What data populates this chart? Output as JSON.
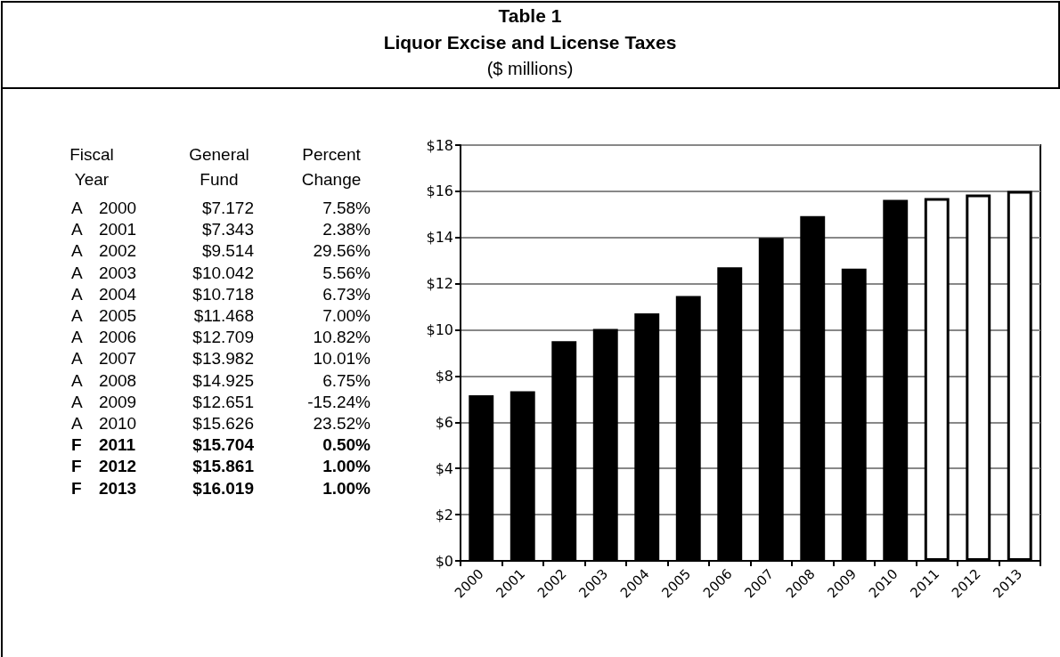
{
  "chart_data": [
    {
      "type": "other",
      "annotations": [
        "Fiscal Year",
        "General Fund",
        "Percent Change",
        "A 2000",
        "$7.172",
        "7.58%",
        "A 2001",
        "$7.343",
        "2.38%",
        "A 2002",
        "$9.514",
        "29.56%",
        "A 2003",
        "$10.042",
        "5.56%",
        "A 2004",
        "$10.718",
        "6.73%",
        "A 2005",
        "$11.468",
        "7.00%",
        "A 2006",
        "$12.709",
        "10.82%",
        "A 2007",
        "$13.982",
        "10.01%",
        "A 2008",
        "$14.925",
        "6.75%",
        "A 2009",
        "$12.651",
        "-15.24%",
        "A 2010",
        "$15.626",
        "23.52%",
        "F 2011",
        "$15.704",
        "0.50%",
        "F 2012",
        "$15.861",
        "1.00%",
        "F 2013",
        "$16.019",
        "1.00%"
      ]
    },
    {
      "type": "bar",
      "title": "Table 1",
      "subtitle": "Liquor Excise and License Taxes",
      "annotations": [
        "($ millions)"
      ],
      "categories": [
        "2000",
        "2001",
        "2002",
        "2003",
        "2004",
        "2005",
        "2006",
        "2007",
        "2008",
        "2009",
        "2010",
        "2011",
        "2012",
        "2013"
      ],
      "values": [
        7.172,
        7.343,
        9.514,
        10.042,
        10.718,
        11.468,
        12.709,
        13.982,
        14.925,
        12.651,
        15.626,
        15.704,
        15.861,
        16.019
      ],
      "colors": [
        "#000000",
        "#000000",
        "#000000",
        "#000000",
        "#000000",
        "#000000",
        "#000000",
        "#000000",
        "#000000",
        "#000000",
        "#000000",
        "#ffffff",
        "#ffffff",
        "#ffffff"
      ],
      "ylim": [
        0,
        18
      ],
      "yticks": [
        {
          "value": 0,
          "label": "$0"
        },
        {
          "value": 2,
          "label": "$2"
        },
        {
          "value": 4,
          "label": "$4"
        },
        {
          "value": 6,
          "label": "$6"
        },
        {
          "value": 8,
          "label": "$8"
        },
        {
          "value": 10,
          "label": "$10"
        },
        {
          "value": 12,
          "label": "$12"
        },
        {
          "value": 14,
          "label": "$14"
        },
        {
          "value": 16,
          "label": "$16"
        },
        {
          "value": 18,
          "label": "$18"
        }
      ],
      "grid": "y"
    }
  ]
}
